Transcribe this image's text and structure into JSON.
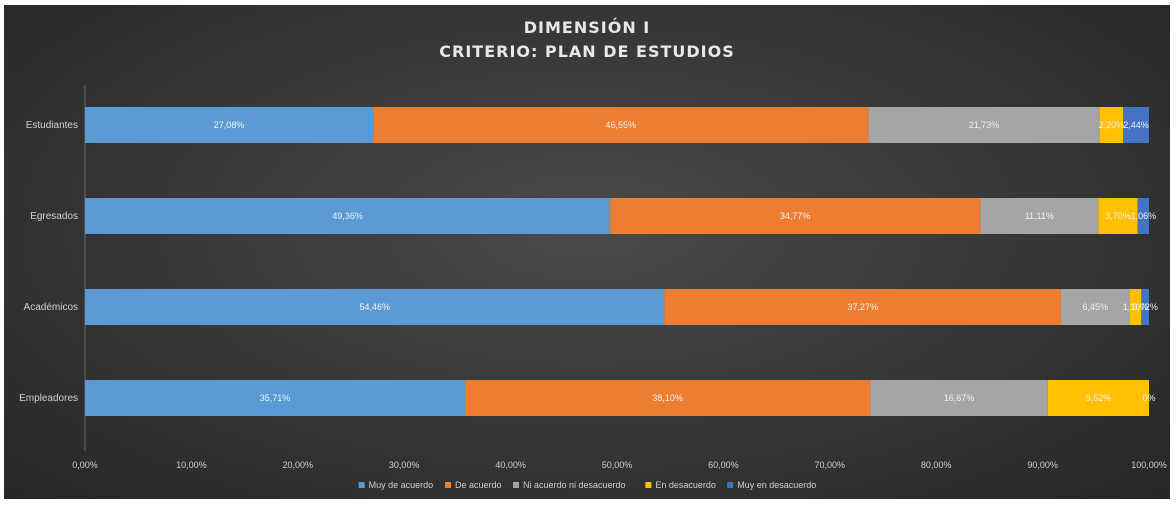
{
  "chart_data": {
    "type": "bar",
    "orientation": "horizontal",
    "stacked": true,
    "title_lines": [
      "DIMENSIÓN I",
      "CRITERIO: PLAN DE ESTUDIOS"
    ],
    "xlabel": "",
    "ylabel": "",
    "xlim": [
      0,
      100
    ],
    "x_ticks": [
      "0,00%",
      "10,00%",
      "20,00%",
      "30,00%",
      "40,00%",
      "50,00%",
      "60,00%",
      "70,00%",
      "80,00%",
      "90,00%",
      "100,00%"
    ],
    "categories": [
      "Estudiantes",
      "Egresados",
      "Académicos",
      "Empleadores"
    ],
    "grid": false,
    "legend_position": "bottom",
    "series": [
      {
        "name": "Muy de acuerdo",
        "color": "#5b9bd5",
        "values": [
          27.08,
          49.36,
          54.46,
          35.71
        ],
        "labels": [
          "27,08%",
          "49,36%",
          "54,46%",
          "35,71%"
        ]
      },
      {
        "name": "De acuerdo",
        "color": "#ed7d31",
        "values": [
          46.55,
          34.77,
          37.27,
          38.1
        ],
        "labels": [
          "46,55%",
          "34,77%",
          "37,27%",
          "38,10%"
        ]
      },
      {
        "name": "Ni acuerdo ni desacuerdo",
        "color": "#a5a5a5",
        "values": [
          21.73,
          11.11,
          6.45,
          16.67
        ],
        "labels": [
          "21,73%",
          "11,11%",
          "6,45%",
          "16,67%"
        ]
      },
      {
        "name": "En desacuerdo",
        "color": "#ffc000",
        "values": [
          2.2,
          3.7,
          1.1,
          9.52
        ],
        "labels": [
          "2,20%",
          "3,70%",
          "1,10%",
          "9,52%"
        ]
      },
      {
        "name": "Muy en desacuerdo",
        "color": "#4472c4",
        "values": [
          2.44,
          1.06,
          0.72,
          0
        ],
        "labels": [
          "2,44%",
          "1,06%",
          "0,72%",
          "0%"
        ]
      }
    ]
  }
}
